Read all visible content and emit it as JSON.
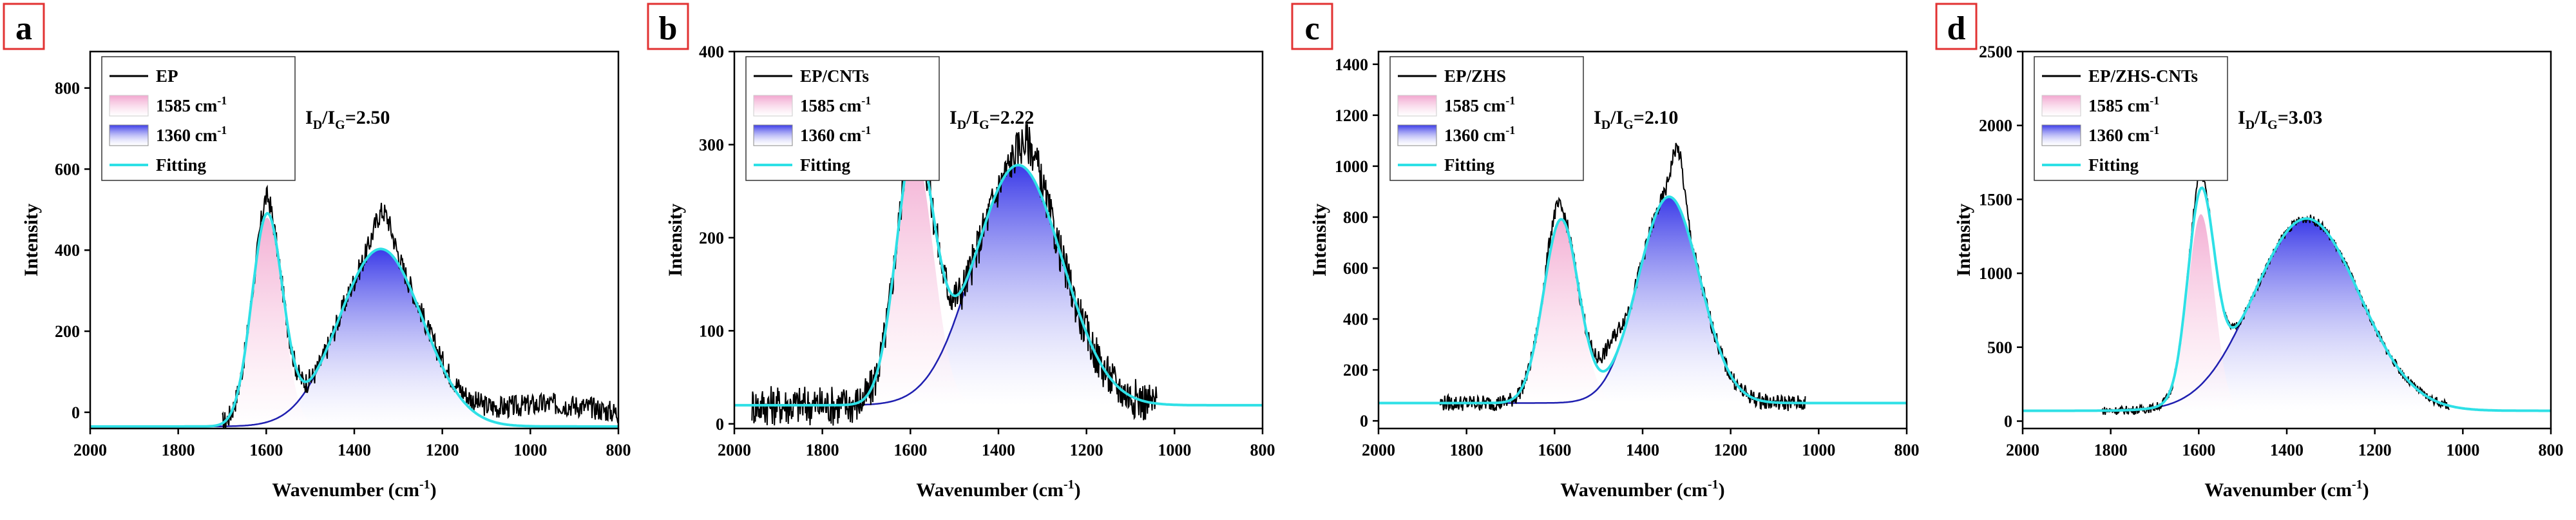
{
  "chart_data": [
    {
      "panel": "a",
      "type": "line",
      "xlabel": "Wavenumber (cm",
      "xlabel_sup": "-1",
      "xlabel_end": ")",
      "ylabel": "Intensity",
      "xlim": [
        2000,
        800
      ],
      "ylim": [
        -40,
        890
      ],
      "xticks": [
        2000,
        1800,
        1600,
        1400,
        1200,
        1000,
        800
      ],
      "yticks": [
        0,
        200,
        400,
        600,
        800
      ],
      "baseline": -35,
      "legend": {
        "raw": "EP",
        "g": "1585 cm",
        "d": "1360 cm",
        "sup": "-1",
        "fit": "Fitting"
      },
      "ratio": {
        "I": "I",
        "D": "D",
        "slash": "/",
        "G": "G",
        "value": "=2.50"
      },
      "peaks": [
        {
          "name": "G",
          "center": 1598,
          "amplitude": 515,
          "sigma": 35
        },
        {
          "name": "D",
          "center": 1340,
          "amplitude": 438,
          "sigma": 95
        }
      ],
      "raw_range": [
        1700,
        800
      ],
      "raw_noise": 28,
      "raw_bumps": [
        {
          "center": 1600,
          "amplitude": 40,
          "sigma": 10
        },
        {
          "center": 1335,
          "amplitude": 90,
          "sigma": 20
        },
        {
          "center": 950,
          "amplitude": 55,
          "sigma": 150
        }
      ],
      "colors": {
        "raw": "#000000",
        "fit": "#2ee0e6",
        "g_fill": "#f2a6cf",
        "d_fill": "#3a3ae8",
        "d_line": "#1f1fb0"
      }
    },
    {
      "panel": "b",
      "type": "line",
      "xlabel": "Wavenumber (cm",
      "xlabel_sup": "-1",
      "xlabel_end": ")",
      "ylabel": "Intensity",
      "xlim": [
        2000,
        800
      ],
      "ylim": [
        -5,
        400
      ],
      "xticks": [
        2000,
        1800,
        1600,
        1400,
        1200,
        1000,
        800
      ],
      "yticks": [
        0,
        100,
        200,
        300,
        400
      ],
      "baseline": 20,
      "legend": {
        "raw": "EP/CNTs",
        "g": "1585 cm",
        "d": "1360 cm",
        "sup": "-1",
        "fit": "Fitting"
      },
      "ratio": {
        "I": "I",
        "D": "D",
        "slash": "/",
        "G": "G",
        "value": "=2.22"
      },
      "peaks": [
        {
          "name": "G",
          "center": 1590,
          "amplitude": 272,
          "sigma": 42
        },
        {
          "name": "D",
          "center": 1355,
          "amplitude": 258,
          "sigma": 100
        }
      ],
      "raw_range": [
        1960,
        1040
      ],
      "raw_noise": 22,
      "raw_bumps": [
        {
          "center": 1600,
          "amplitude": 20,
          "sigma": 12
        },
        {
          "center": 1330,
          "amplitude": 30,
          "sigma": 25
        }
      ],
      "colors": {
        "raw": "#000000",
        "fit": "#2ee0e6",
        "g_fill": "#f2a6cf",
        "d_fill": "#3a3ae8",
        "d_line": "#1f1fb0"
      }
    },
    {
      "panel": "c",
      "type": "line",
      "xlabel": "Wavenumber (cm",
      "xlabel_sup": "-1",
      "xlabel_end": ")",
      "ylabel": "Intensity",
      "xlim": [
        2000,
        800
      ],
      "ylim": [
        -30,
        1450
      ],
      "xticks": [
        2000,
        1800,
        1600,
        1400,
        1200,
        1000,
        800
      ],
      "yticks": [
        0,
        200,
        400,
        600,
        800,
        1000,
        1200,
        1400
      ],
      "baseline": 70,
      "legend": {
        "raw": "EP/ZHS",
        "g": "1585 cm",
        "d": "1360 cm",
        "sup": "-1",
        "fit": "Fitting"
      },
      "ratio": {
        "I": "I",
        "D": "D",
        "slash": "/",
        "G": "G",
        "value": "=2.10"
      },
      "peaks": [
        {
          "name": "G",
          "center": 1585,
          "amplitude": 720,
          "sigma": 40
        },
        {
          "name": "D",
          "center": 1340,
          "amplitude": 810,
          "sigma": 70
        }
      ],
      "raw_range": [
        1860,
        1030
      ],
      "raw_noise": 32,
      "raw_bumps": [
        {
          "center": 1320,
          "amplitude": 220,
          "sigma": 14
        },
        {
          "center": 1600,
          "amplitude": 70,
          "sigma": 15
        },
        {
          "center": 1470,
          "amplitude": 90,
          "sigma": 25
        }
      ],
      "colors": {
        "raw": "#000000",
        "fit": "#2ee0e6",
        "g_fill": "#f2a6cf",
        "d_fill": "#3a3ae8",
        "d_line": "#1f1fb0"
      }
    },
    {
      "panel": "d",
      "type": "line",
      "xlabel": "Wavenumber (cm",
      "xlabel_sup": "-1",
      "xlabel_end": ")",
      "ylabel": "Intensity",
      "xlim": [
        2000,
        800
      ],
      "ylim": [
        -50,
        2500
      ],
      "xticks": [
        2000,
        1800,
        1600,
        1400,
        1200,
        1000,
        800
      ],
      "yticks": [
        0,
        500,
        1000,
        1500,
        2000,
        2500
      ],
      "baseline": 70,
      "legend": {
        "raw": "EP/ZHS-CNTs",
        "g": "1585 cm",
        "d": "1360 cm",
        "sup": "-1",
        "fit": "Fitting"
      },
      "ratio": {
        "I": "I",
        "D": "D",
        "slash": "/",
        "G": "G",
        "value": "=3.03"
      },
      "peaks": [
        {
          "name": "G",
          "center": 1595,
          "amplitude": 1330,
          "sigma": 30
        },
        {
          "name": "D",
          "center": 1355,
          "amplitude": 1300,
          "sigma": 120
        }
      ],
      "raw_range": [
        1820,
        1030
      ],
      "raw_noise": 30,
      "raw_bumps": [
        {
          "center": 1600,
          "amplitude": 100,
          "sigma": 12
        }
      ],
      "colors": {
        "raw": "#000000",
        "fit": "#2ee0e6",
        "g_fill": "#f2a6cf",
        "d_fill": "#3a3ae8",
        "d_line": "#1f1fb0"
      }
    }
  ],
  "panel_frame_color": "#e23232"
}
